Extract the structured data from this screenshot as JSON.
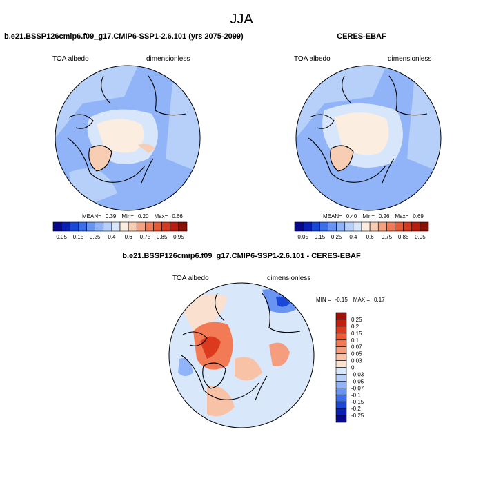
{
  "title": "JJA",
  "panels": [
    {
      "title": "b.e21.BSSP126cmip6.f09_g17.CMIP6-SSP1-2.6.101 (yrs 2075-2099)",
      "left_label": "TOA albedo",
      "right_label": "dimensionless",
      "stats": [
        "MEAN=",
        "0.39",
        "Min=",
        "0.20",
        "Max=",
        "0.66"
      ]
    },
    {
      "title": "CERES-EBAF",
      "left_label": "TOA albedo",
      "right_label": "dimensionless",
      "stats": [
        "MEAN=",
        "0.40",
        "Min=",
        "0.26",
        "Max=",
        "0.69"
      ]
    },
    {
      "title": "b.e21.BSSP126cmip6.f09_g17.CMIP6-SSP1-2.6.101 - CERES-EBAF",
      "left_label": "TOA albedo",
      "right_label": "dimensionless",
      "stats": [
        "MIN =",
        "-0.15",
        "MAX =",
        "0.17"
      ]
    }
  ],
  "albedo_colorbar": {
    "labels": [
      "0.05",
      "0.15",
      "0.25",
      "0.4",
      "0.6",
      "0.75",
      "0.85",
      "0.95"
    ],
    "colors": [
      "#08088f",
      "#0a1fb5",
      "#1a48d6",
      "#3c6ee8",
      "#6a94f2",
      "#90b4f7",
      "#b6d0fa",
      "#d8e6fb",
      "#fbeee0",
      "#f7cdb4",
      "#f3a383",
      "#ee7a58",
      "#e45a36",
      "#d43a1f",
      "#b81e10",
      "#8a0f05"
    ]
  },
  "diff_colorbar": {
    "labels": [
      "0.25",
      "0.2",
      "0.15",
      "0.1",
      "0.07",
      "0.05",
      "0.03",
      "0",
      "-0.03",
      "-0.05",
      "-0.07",
      "-0.1",
      "-0.15",
      "-0.2",
      "-0.25"
    ],
    "colors": [
      "#a01005",
      "#c4200e",
      "#dc3a1e",
      "#ec5a36",
      "#f27a55",
      "#f59d7c",
      "#f8c2a6",
      "#fae0cf",
      "#d9e7fb",
      "#b6d0fa",
      "#90b4f7",
      "#6a94f2",
      "#3c6ee8",
      "#1a48d6",
      "#0a1fb5",
      "#08088f"
    ]
  }
}
